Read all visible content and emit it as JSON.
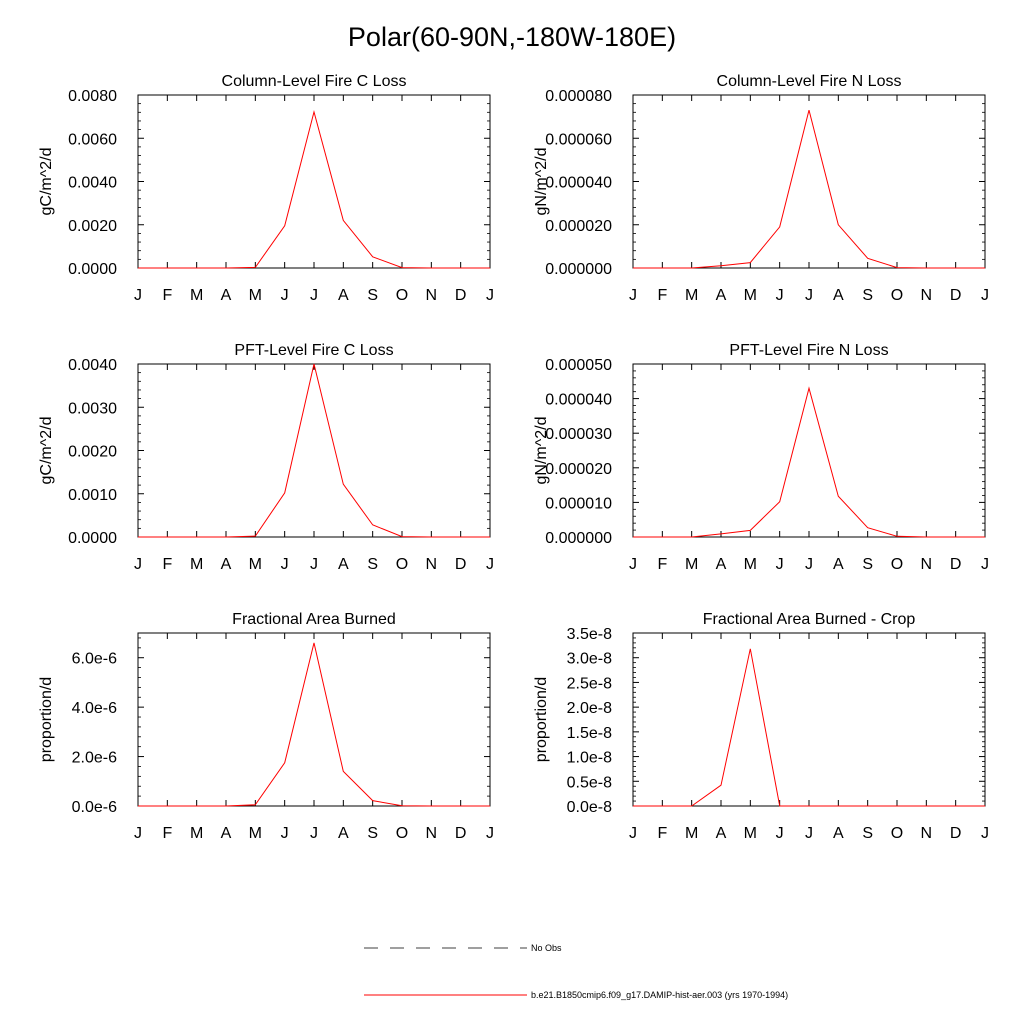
{
  "page": {
    "title": "Polar(60-90N,-180W-180E)"
  },
  "legend": {
    "obs_label": "No Obs",
    "model_label": "b.e21.B1850cmip6.f09_g17.DAMIP-hist-aer.003 (yrs 1970-1994)",
    "model_color": "#ff0000",
    "obs_color": "#000000"
  },
  "chart_data": [
    {
      "type": "line",
      "title": "Column-Level Fire C Loss",
      "ylabel": "gC/m^2/d",
      "x": [
        "J",
        "F",
        "M",
        "A",
        "M",
        "J",
        "J",
        "A",
        "S",
        "O",
        "N",
        "D",
        "J"
      ],
      "ylim": [
        0,
        0.008
      ],
      "yticks": [
        "0.0000",
        "0.0020",
        "0.0040",
        "0.0060",
        "0.0080"
      ],
      "series": [
        {
          "values": [
            0,
            0,
            0,
            0,
            3e-05,
            0.00195,
            0.00722,
            0.0022,
            0.00052,
            2e-05,
            0,
            0,
            0
          ]
        }
      ]
    },
    {
      "type": "line",
      "title": "Column-Level Fire N Loss",
      "ylabel": "gN/m^2/d",
      "x": [
        "J",
        "F",
        "M",
        "A",
        "M",
        "J",
        "J",
        "A",
        "S",
        "O",
        "N",
        "D",
        "J"
      ],
      "ylim": [
        0,
        8e-05
      ],
      "yticks": [
        "0.000000",
        "0.000020",
        "0.000040",
        "0.000060",
        "0.000080"
      ],
      "series": [
        {
          "values": [
            0,
            0,
            0,
            1e-06,
            2.5e-06,
            1.9e-05,
            7.3e-05,
            2e-05,
            4.5e-06,
            2e-07,
            0,
            0,
            0
          ]
        }
      ]
    },
    {
      "type": "line",
      "title": "PFT-Level Fire C Loss",
      "ylabel": "gC/m^2/d",
      "x": [
        "J",
        "F",
        "M",
        "A",
        "M",
        "J",
        "J",
        "A",
        "S",
        "O",
        "N",
        "D",
        "J"
      ],
      "ylim": [
        0,
        0.004
      ],
      "yticks": [
        "0.0000",
        "0.0010",
        "0.0020",
        "0.0030",
        "0.0040"
      ],
      "series": [
        {
          "values": [
            0,
            0,
            0,
            0,
            2e-05,
            0.00102,
            0.004,
            0.00122,
            0.00028,
            1e-05,
            0,
            0,
            0
          ]
        }
      ]
    },
    {
      "type": "line",
      "title": "PFT-Level Fire N Loss",
      "ylabel": "gN/m^2/d",
      "x": [
        "J",
        "F",
        "M",
        "A",
        "M",
        "J",
        "J",
        "A",
        "S",
        "O",
        "N",
        "D",
        "J"
      ],
      "ylim": [
        0,
        5e-05
      ],
      "yticks": [
        "0.000000",
        "0.000010",
        "0.000020",
        "0.000030",
        "0.000040",
        "0.000050"
      ],
      "series": [
        {
          "values": [
            0,
            0,
            0,
            9e-07,
            1.9e-06,
            1.02e-05,
            4.3e-05,
            1.18e-05,
            2.7e-06,
            2e-07,
            0,
            0,
            0
          ]
        }
      ]
    },
    {
      "type": "line",
      "title": "Fractional Area Burned",
      "ylabel": "proportion/d",
      "x": [
        "J",
        "F",
        "M",
        "A",
        "M",
        "J",
        "J",
        "A",
        "S",
        "O",
        "N",
        "D",
        "J"
      ],
      "ylim": [
        0,
        7e-06
      ],
      "yticks": [
        "0.0e-6",
        "2.0e-6",
        "4.0e-6",
        "6.0e-6"
      ],
      "series": [
        {
          "values": [
            0,
            0,
            0,
            0,
            5e-08,
            1.75e-06,
            6.6e-06,
            1.4e-06,
            2.2e-07,
            1e-08,
            0,
            0,
            0
          ]
        }
      ]
    },
    {
      "type": "line",
      "title": "Fractional Area Burned - Crop",
      "ylabel": "proportion/d",
      "x": [
        "J",
        "F",
        "M",
        "A",
        "M",
        "J",
        "J",
        "A",
        "S",
        "O",
        "N",
        "D",
        "J"
      ],
      "ylim": [
        0,
        3.5e-08
      ],
      "yticks": [
        "0.0e-8",
        "0.5e-8",
        "1.0e-8",
        "1.5e-8",
        "2.0e-8",
        "2.5e-8",
        "3.0e-8",
        "3.5e-8"
      ],
      "series": [
        {
          "values": [
            0,
            0,
            0,
            4.2e-09,
            3.18e-08,
            0,
            0,
            0,
            0,
            0,
            0,
            0,
            0
          ]
        }
      ]
    }
  ]
}
